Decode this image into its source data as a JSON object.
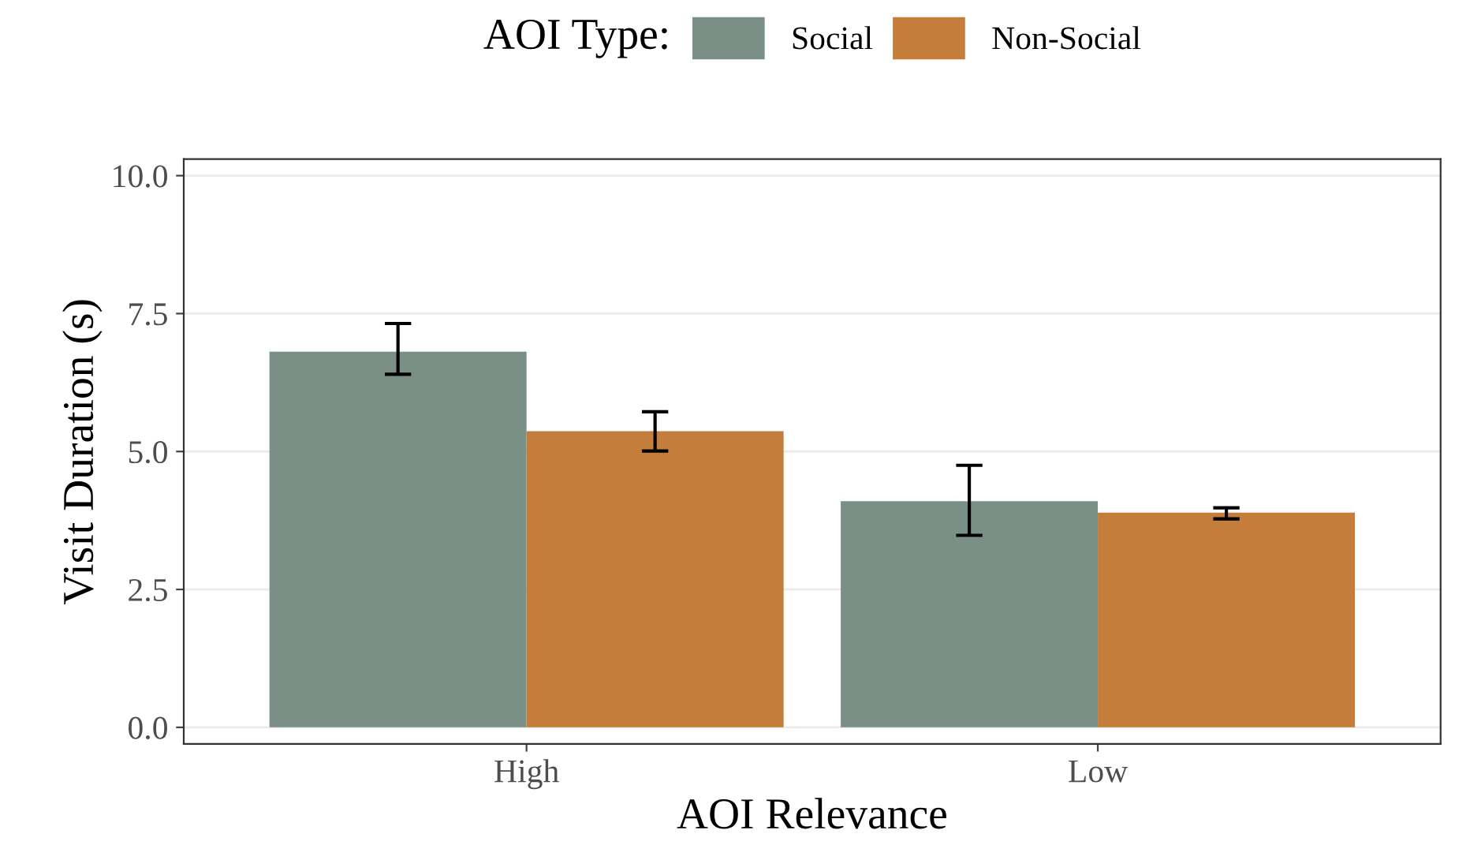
{
  "chart_data": {
    "type": "bar",
    "xlabel": "AOI Relevance",
    "ylabel": "Visit Duration (s)",
    "legend_title": "AOI Type:",
    "categories": [
      "High",
      "Low"
    ],
    "series": [
      {
        "name": "Social",
        "color": "#7a8f86",
        "values": [
          6.81,
          4.1
        ],
        "errors": [
          [
            6.4,
            7.32
          ],
          [
            3.48,
            4.75
          ]
        ]
      },
      {
        "name": "Non-Social",
        "color": "#c47d3a",
        "values": [
          5.37,
          3.89
        ],
        "errors": [
          [
            5.01,
            5.72
          ],
          [
            3.78,
            3.98
          ]
        ]
      }
    ],
    "ylim": [
      -0.3,
      10.3
    ],
    "yticks": [
      {
        "value": 0,
        "label": "0.0"
      },
      {
        "value": 2.5,
        "label": "2.5"
      },
      {
        "value": 5,
        "label": "5.0"
      },
      {
        "value": 7.5,
        "label": "7.5"
      },
      {
        "value": 10,
        "label": "10.0"
      }
    ],
    "grid": "y",
    "legend": "top"
  }
}
